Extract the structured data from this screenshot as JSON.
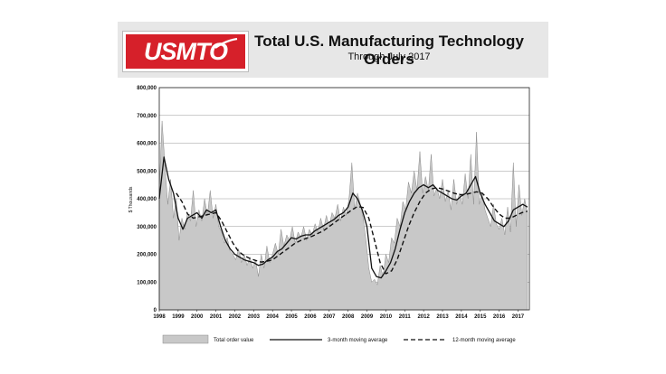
{
  "header": {
    "logo_text": "USMTO",
    "title": "Total U.S. Manufacturing Technology Orders",
    "subtitle": "Through July 2017"
  },
  "colors": {
    "logo_red": "#d6202a",
    "area_fill": "#c8c8c8",
    "line": "#111111",
    "header_bg": "#e7e7e7"
  },
  "chart_data": {
    "type": "area",
    "ylabel": "$ Thousands",
    "ylim": [
      0,
      800000
    ],
    "yticks": [
      "0",
      "100,000",
      "200,000",
      "300,000",
      "400,000",
      "500,000",
      "600,000",
      "700,000",
      "800,000"
    ],
    "xlim": [
      1998,
      2017.6
    ],
    "xticks": [
      "1998",
      "1999",
      "2000",
      "2001",
      "2002",
      "2003",
      "2004",
      "2005",
      "2006",
      "2007",
      "2008",
      "2009",
      "2010",
      "2011",
      "2012",
      "2013",
      "2014",
      "2015",
      "2016",
      "2017"
    ],
    "grid": true,
    "legend_position": "bottom",
    "series": [
      {
        "name": "Total order value",
        "style": "area",
        "x": [
          1998.0,
          1998.15,
          1998.3,
          1998.45,
          1998.6,
          1998.75,
          1998.9,
          1999.05,
          1999.2,
          1999.35,
          1999.5,
          1999.65,
          1999.8,
          1999.95,
          2000.1,
          2000.25,
          2000.4,
          2000.55,
          2000.7,
          2000.85,
          2001.0,
          2001.15,
          2001.3,
          2001.45,
          2001.6,
          2001.75,
          2001.9,
          2002.05,
          2002.2,
          2002.35,
          2002.5,
          2002.65,
          2002.8,
          2002.95,
          2003.1,
          2003.25,
          2003.4,
          2003.55,
          2003.7,
          2003.85,
          2004.0,
          2004.15,
          2004.3,
          2004.45,
          2004.6,
          2004.75,
          2004.9,
          2005.05,
          2005.2,
          2005.35,
          2005.5,
          2005.65,
          2005.8,
          2005.95,
          2006.1,
          2006.25,
          2006.4,
          2006.55,
          2006.7,
          2006.85,
          2007.0,
          2007.15,
          2007.3,
          2007.45,
          2007.6,
          2007.75,
          2007.9,
          2008.05,
          2008.2,
          2008.35,
          2008.5,
          2008.65,
          2008.8,
          2008.95,
          2009.1,
          2009.25,
          2009.4,
          2009.55,
          2009.7,
          2009.85,
          2010.0,
          2010.15,
          2010.3,
          2010.45,
          2010.6,
          2010.75,
          2010.9,
          2011.05,
          2011.2,
          2011.35,
          2011.5,
          2011.65,
          2011.8,
          2011.95,
          2012.1,
          2012.25,
          2012.4,
          2012.55,
          2012.7,
          2012.85,
          2013.0,
          2013.15,
          2013.3,
          2013.45,
          2013.6,
          2013.75,
          2013.9,
          2014.05,
          2014.2,
          2014.35,
          2014.5,
          2014.65,
          2014.8,
          2014.95,
          2015.1,
          2015.25,
          2015.4,
          2015.55,
          2015.7,
          2015.85,
          2016.0,
          2016.15,
          2016.3,
          2016.45,
          2016.6,
          2016.75,
          2016.9,
          2017.05,
          2017.2,
          2017.35,
          2017.5
        ],
        "values": [
          430000,
          680000,
          520000,
          380000,
          470000,
          330000,
          400000,
          250000,
          330000,
          290000,
          350000,
          320000,
          430000,
          300000,
          360000,
          320000,
          400000,
          340000,
          430000,
          330000,
          380000,
          300000,
          280000,
          240000,
          260000,
          210000,
          200000,
          180000,
          220000,
          170000,
          200000,
          160000,
          190000,
          150000,
          180000,
          120000,
          200000,
          150000,
          230000,
          170000,
          200000,
          240000,
          200000,
          290000,
          230000,
          270000,
          250000,
          300000,
          240000,
          280000,
          260000,
          300000,
          250000,
          290000,
          270000,
          310000,
          280000,
          330000,
          290000,
          340000,
          300000,
          350000,
          330000,
          380000,
          320000,
          370000,
          340000,
          400000,
          530000,
          360000,
          420000,
          380000,
          330000,
          250000,
          150000,
          100000,
          110000,
          90000,
          160000,
          120000,
          200000,
          170000,
          260000,
          240000,
          330000,
          300000,
          390000,
          360000,
          460000,
          420000,
          500000,
          430000,
          570000,
          420000,
          480000,
          430000,
          560000,
          410000,
          440000,
          400000,
          470000,
          390000,
          430000,
          360000,
          470000,
          380000,
          420000,
          380000,
          490000,
          400000,
          560000,
          380000,
          640000,
          380000,
          420000,
          360000,
          330000,
          300000,
          380000,
          310000,
          290000,
          330000,
          270000,
          370000,
          280000,
          530000,
          300000,
          450000,
          340000,
          400000,
          350000
        ]
      },
      {
        "name": "3-month moving average",
        "style": "solid",
        "x": [
          1998.0,
          1998.25,
          1998.5,
          1998.75,
          1999.0,
          1999.25,
          1999.5,
          1999.75,
          2000.0,
          2000.25,
          2000.5,
          2000.75,
          2001.0,
          2001.25,
          2001.5,
          2001.75,
          2002.0,
          2002.25,
          2002.5,
          2002.75,
          2003.0,
          2003.25,
          2003.5,
          2003.75,
          2004.0,
          2004.25,
          2004.5,
          2004.75,
          2005.0,
          2005.25,
          2005.5,
          2005.75,
          2006.0,
          2006.25,
          2006.5,
          2006.75,
          2007.0,
          2007.25,
          2007.5,
          2007.75,
          2008.0,
          2008.25,
          2008.5,
          2008.75,
          2009.0,
          2009.25,
          2009.5,
          2009.75,
          2010.0,
          2010.25,
          2010.5,
          2010.75,
          2011.0,
          2011.25,
          2011.5,
          2011.75,
          2012.0,
          2012.25,
          2012.5,
          2012.75,
          2013.0,
          2013.25,
          2013.5,
          2013.75,
          2014.0,
          2014.25,
          2014.5,
          2014.75,
          2015.0,
          2015.25,
          2015.5,
          2015.75,
          2016.0,
          2016.25,
          2016.5,
          2016.75,
          2017.0,
          2017.25,
          2017.5
        ],
        "values": [
          400000,
          550000,
          470000,
          420000,
          330000,
          290000,
          330000,
          340000,
          350000,
          330000,
          360000,
          350000,
          360000,
          300000,
          250000,
          220000,
          200000,
          190000,
          180000,
          175000,
          170000,
          160000,
          165000,
          180000,
          190000,
          210000,
          220000,
          240000,
          260000,
          255000,
          265000,
          270000,
          270000,
          285000,
          295000,
          305000,
          315000,
          325000,
          340000,
          350000,
          370000,
          420000,
          400000,
          360000,
          300000,
          150000,
          120000,
          115000,
          140000,
          170000,
          220000,
          290000,
          350000,
          390000,
          420000,
          440000,
          450000,
          440000,
          450000,
          430000,
          420000,
          410000,
          400000,
          395000,
          410000,
          420000,
          450000,
          480000,
          420000,
          380000,
          350000,
          320000,
          310000,
          300000,
          320000,
          360000,
          370000,
          380000,
          370000
        ]
      },
      {
        "name": "12-month moving average",
        "style": "dashed",
        "x": [
          1998.9,
          1999.2,
          1999.5,
          1999.8,
          2000.1,
          2000.4,
          2000.7,
          2001.0,
          2001.3,
          2001.6,
          2001.9,
          2002.2,
          2002.5,
          2002.8,
          2003.1,
          2003.4,
          2003.7,
          2004.0,
          2004.3,
          2004.6,
          2004.9,
          2005.2,
          2005.5,
          2005.8,
          2006.1,
          2006.4,
          2006.7,
          2007.0,
          2007.3,
          2007.6,
          2007.9,
          2008.2,
          2008.5,
          2008.8,
          2009.1,
          2009.4,
          2009.7,
          2010.0,
          2010.3,
          2010.6,
          2010.9,
          2011.2,
          2011.5,
          2011.8,
          2012.1,
          2012.4,
          2012.7,
          2013.0,
          2013.3,
          2013.6,
          2013.9,
          2014.2,
          2014.5,
          2014.8,
          2015.1,
          2015.4,
          2015.7,
          2016.0,
          2016.3,
          2016.6,
          2016.9,
          2017.2,
          2017.5
        ],
        "values": [
          420000,
          390000,
          345000,
          330000,
          335000,
          340000,
          345000,
          350000,
          320000,
          280000,
          240000,
          210000,
          195000,
          185000,
          178000,
          172000,
          175000,
          180000,
          195000,
          210000,
          225000,
          240000,
          250000,
          258000,
          265000,
          275000,
          285000,
          300000,
          315000,
          330000,
          345000,
          360000,
          372000,
          368000,
          330000,
          250000,
          170000,
          130000,
          140000,
          180000,
          240000,
          300000,
          350000,
          390000,
          420000,
          435000,
          440000,
          435000,
          428000,
          420000,
          415000,
          415000,
          420000,
          425000,
          420000,
          400000,
          370000,
          345000,
          330000,
          330000,
          340000,
          350000,
          355000
        ]
      }
    ]
  }
}
